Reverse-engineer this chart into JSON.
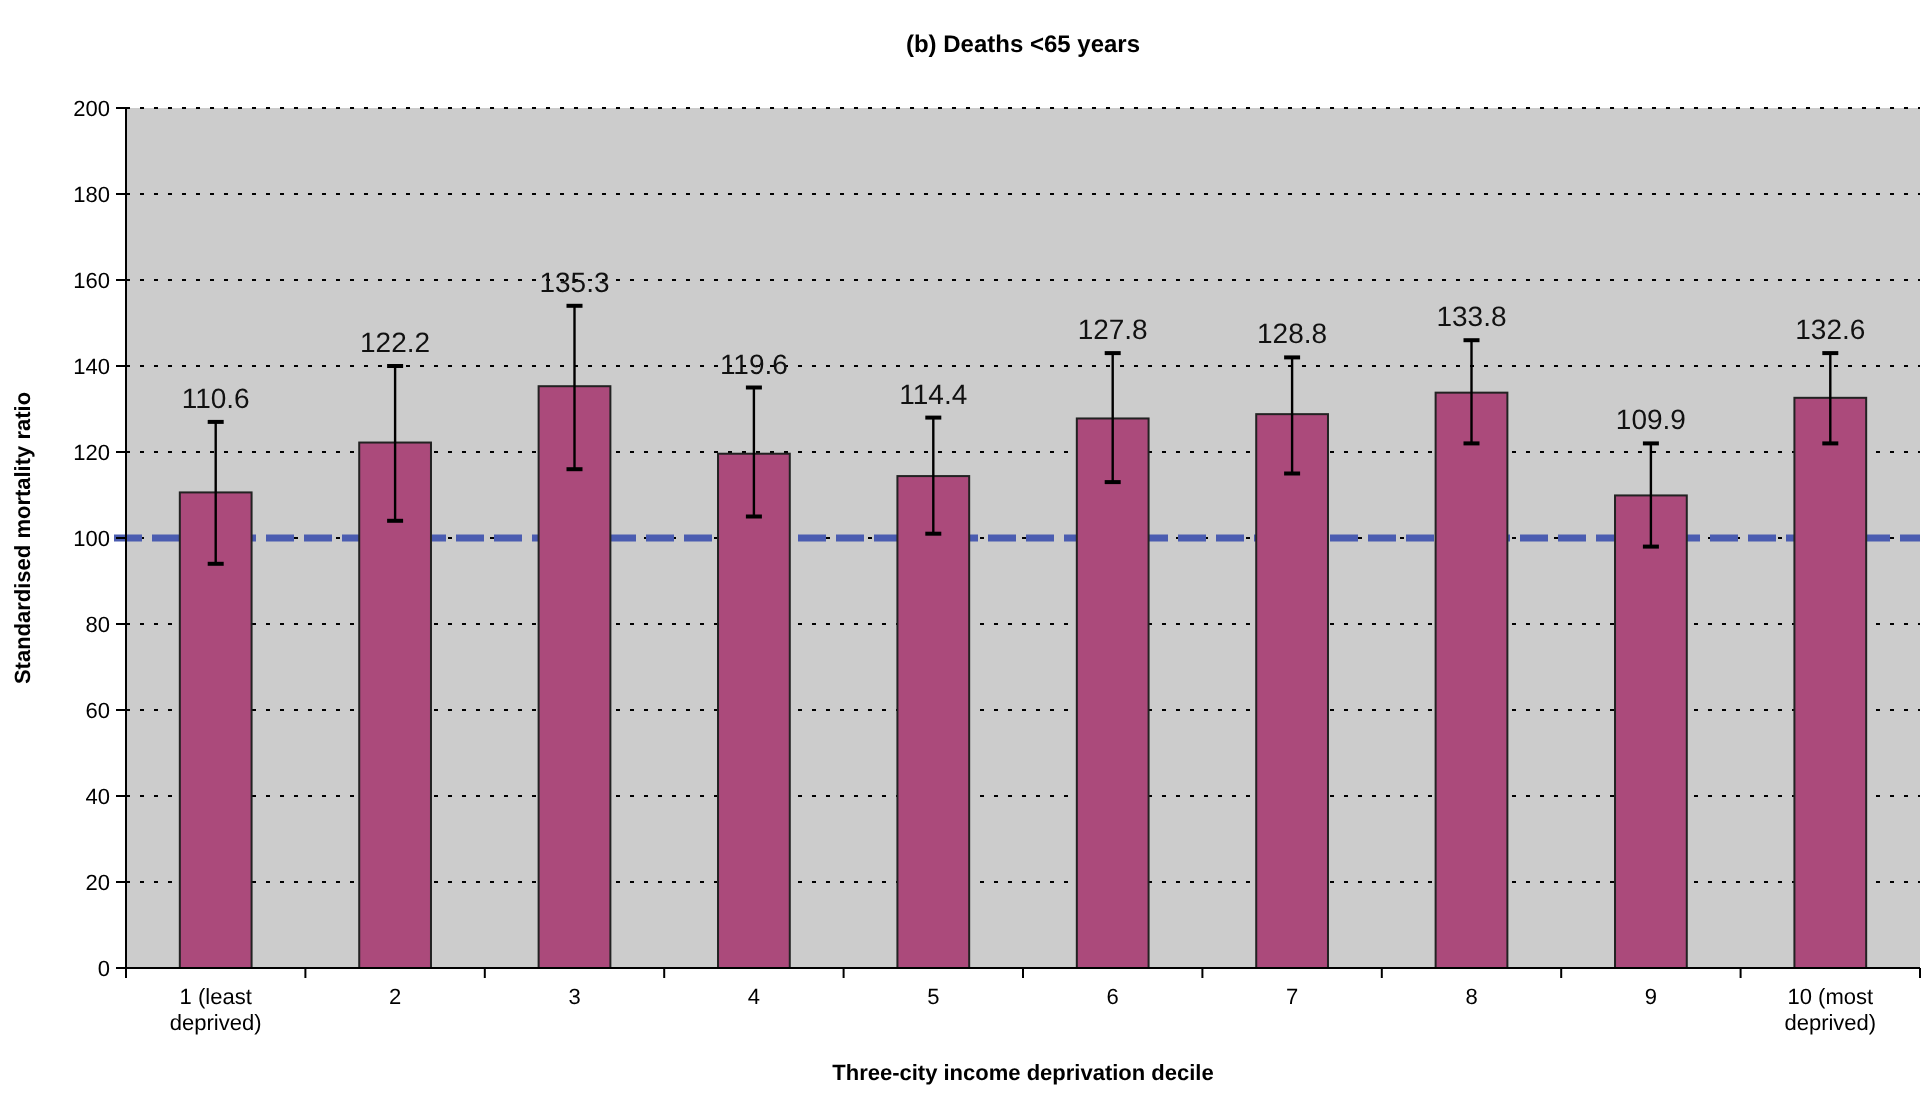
{
  "chart_data": {
    "type": "bar",
    "title": "(b) Deaths <65 years",
    "xlabel": "Three-city income deprivation decile",
    "ylabel": "Standardised mortality ratio",
    "categories": [
      "1 (least deprived)",
      "2",
      "3",
      "4",
      "5",
      "6",
      "7",
      "8",
      "9",
      "10 (most deprived)"
    ],
    "values": [
      110.6,
      122.2,
      135.3,
      119.6,
      114.4,
      127.8,
      128.8,
      133.8,
      109.9,
      132.6
    ],
    "errors": [
      [
        94,
        127
      ],
      [
        104,
        140
      ],
      [
        116,
        154
      ],
      [
        105,
        135
      ],
      [
        101,
        128
      ],
      [
        113,
        143
      ],
      [
        115,
        142
      ],
      [
        122,
        146
      ],
      [
        98,
        122
      ],
      [
        122,
        143
      ]
    ],
    "color": "#ab4a7b",
    "ylim": [
      0,
      200
    ],
    "yticks": [
      0,
      20,
      40,
      60,
      80,
      100,
      120,
      140,
      160,
      180,
      200
    ],
    "grid": "y",
    "data_labels": true,
    "ref_lines": [
      {
        "axis": "y",
        "value": 100,
        "color": "#4a5cb0",
        "line_style": "dashed"
      }
    ]
  }
}
